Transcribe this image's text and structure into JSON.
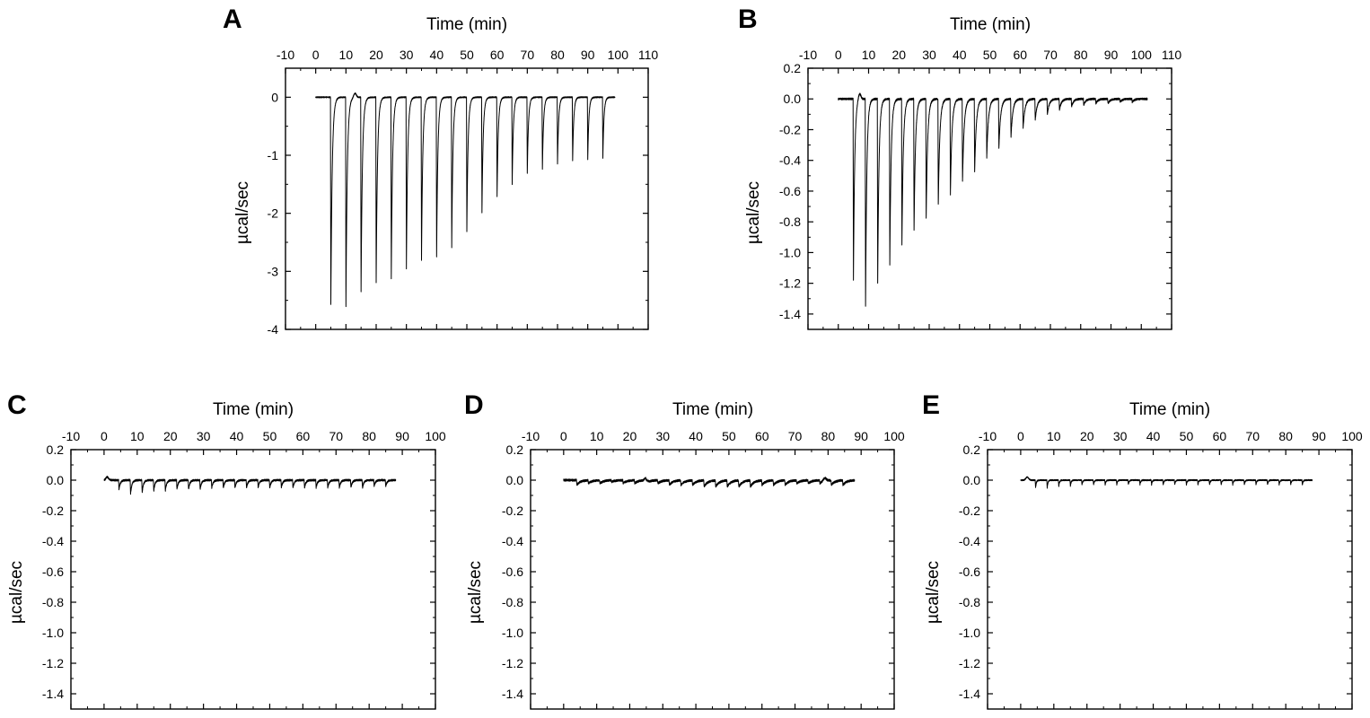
{
  "chart_data": [
    {
      "panel": "A",
      "type": "line",
      "xlabel": "Time (min)",
      "ylabel": "µcal/sec",
      "xlim": [
        -10,
        110
      ],
      "ylim": [
        -4,
        0.5
      ],
      "x_ticks": [
        -10,
        0,
        10,
        20,
        30,
        40,
        50,
        60,
        70,
        80,
        90,
        100,
        110
      ],
      "x_tick_labels": [
        "-10",
        "0",
        "10",
        "20",
        "30",
        "40",
        "50",
        "60",
        "70",
        "80",
        "90",
        "100",
        "110"
      ],
      "y_ticks": [
        0,
        -1,
        -2,
        -3,
        -4
      ],
      "y_tick_labels": [
        "0",
        "-1",
        "-2",
        "-3",
        "-4"
      ],
      "data_range": [
        0,
        99
      ],
      "baseline": 0,
      "injection_times": [
        5,
        10,
        15,
        20,
        25,
        30,
        35,
        40,
        45,
        50,
        55,
        60,
        65,
        70,
        75,
        80,
        85,
        90,
        95
      ],
      "peak_values": [
        -3.58,
        -3.6,
        -3.35,
        -3.2,
        -3.12,
        -2.95,
        -2.82,
        -2.75,
        -2.6,
        -2.32,
        -2.0,
        -1.72,
        -1.5,
        -1.32,
        -1.25,
        -1.15,
        -1.1,
        -1.08,
        -1.05
      ],
      "first_peak_decay": 1.0,
      "last_peak_decay": 0.8,
      "noise": 0.01,
      "bumps": [
        {
          "x": 13,
          "y": 0.07
        }
      ]
    },
    {
      "panel": "B",
      "type": "line",
      "xlabel": "Time (min)",
      "ylabel": "µcal/sec",
      "xlim": [
        -10,
        110
      ],
      "ylim": [
        -1.5,
        0.2
      ],
      "x_ticks": [
        -10,
        0,
        10,
        20,
        30,
        40,
        50,
        60,
        70,
        80,
        90,
        100,
        110
      ],
      "x_tick_labels": [
        "-10",
        "0",
        "10",
        "20",
        "30",
        "40",
        "50",
        "60",
        "70",
        "80",
        "90",
        "100",
        "110"
      ],
      "y_ticks": [
        0.2,
        0.0,
        -0.2,
        -0.4,
        -0.6,
        -0.8,
        -1.0,
        -1.2,
        -1.4
      ],
      "y_tick_labels": [
        "0.2",
        "0.0",
        "-0.2",
        "-0.4",
        "-0.6",
        "-0.8",
        "-1.0",
        "-1.2",
        "-1.4"
      ],
      "data_range": [
        0,
        102
      ],
      "baseline": 0,
      "injection_times": [
        5,
        9,
        13,
        17,
        21,
        25,
        29,
        33,
        37,
        41,
        45,
        49,
        53,
        57,
        61,
        65,
        69,
        73,
        77,
        81,
        85,
        89,
        93,
        97
      ],
      "peak_values": [
        -1.18,
        -1.35,
        -1.2,
        -1.08,
        -0.95,
        -0.86,
        -0.78,
        -0.69,
        -0.62,
        -0.54,
        -0.48,
        -0.38,
        -0.32,
        -0.25,
        -0.19,
        -0.14,
        -0.1,
        -0.07,
        -0.05,
        -0.04,
        -0.03,
        -0.03,
        -0.02,
        -0.02
      ],
      "first_peak_decay": 0.9,
      "last_peak_decay": 1.6,
      "noise": 0.006,
      "bumps": [
        {
          "x": 7,
          "y": 0.04
        }
      ]
    },
    {
      "panel": "C",
      "type": "line",
      "xlabel": "Time (min)",
      "ylabel": "µcal/sec",
      "xlim": [
        -10,
        100
      ],
      "ylim": [
        -1.5,
        0.2
      ],
      "x_ticks": [
        -10,
        0,
        10,
        20,
        30,
        40,
        50,
        60,
        70,
        80,
        90,
        100
      ],
      "x_tick_labels": [
        "-10",
        "0",
        "10",
        "20",
        "30",
        "40",
        "50",
        "60",
        "70",
        "80",
        "90",
        "100"
      ],
      "y_ticks": [
        0.2,
        0.0,
        -0.2,
        -0.4,
        -0.6,
        -0.8,
        -1.0,
        -1.2,
        -1.4
      ],
      "y_tick_labels": [
        "0.2",
        "0.0",
        "-0.2",
        "-0.4",
        "-0.6",
        "-0.8",
        "-1.0",
        "-1.2",
        "-1.4"
      ],
      "data_range": [
        0,
        88
      ],
      "baseline": 0,
      "injection_times": [
        4.5,
        8,
        11.5,
        15,
        18.5,
        22,
        25.5,
        29,
        32.5,
        36,
        39.5,
        43,
        46.5,
        50,
        53.5,
        57,
        60.5,
        64,
        67.5,
        71,
        74.5,
        78,
        81.5,
        85
      ],
      "peak_values": [
        -0.06,
        -0.09,
        -0.08,
        -0.07,
        -0.07,
        -0.06,
        -0.06,
        -0.06,
        -0.05,
        -0.05,
        -0.05,
        -0.05,
        -0.05,
        -0.05,
        -0.05,
        -0.05,
        -0.05,
        -0.05,
        -0.05,
        -0.05,
        -0.05,
        -0.05,
        -0.04,
        -0.04
      ],
      "first_peak_decay": 0.9,
      "last_peak_decay": 0.9,
      "noise": 0.006,
      "bumps": [
        {
          "x": 1,
          "y": 0.02
        }
      ]
    },
    {
      "panel": "D",
      "type": "line",
      "xlabel": "Time (min)",
      "ylabel": "µcal/sec",
      "xlim": [
        -10,
        100
      ],
      "ylim": [
        -1.5,
        0.2
      ],
      "x_ticks": [
        -10,
        0,
        10,
        20,
        30,
        40,
        50,
        60,
        70,
        80,
        90,
        100
      ],
      "x_tick_labels": [
        "-10",
        "0",
        "10",
        "20",
        "30",
        "40",
        "50",
        "60",
        "70",
        "80",
        "90",
        "100"
      ],
      "y_ticks": [
        0.2,
        0.0,
        -0.2,
        -0.4,
        -0.6,
        -0.8,
        -1.0,
        -1.2,
        -1.4
      ],
      "y_tick_labels": [
        "0.2",
        "0.0",
        "-0.2",
        "-0.4",
        "-0.6",
        "-0.8",
        "-1.0",
        "-1.2",
        "-1.4"
      ],
      "data_range": [
        0,
        88
      ],
      "baseline": 0,
      "injection_times": [
        4,
        7.5,
        11,
        14.5,
        18,
        21.5,
        25,
        28.5,
        32,
        35.5,
        39,
        42.5,
        46,
        49.5,
        53,
        56.5,
        60,
        63.5,
        67,
        70.5,
        74,
        77.5,
        81,
        84.5
      ],
      "peak_values": [
        -0.03,
        -0.02,
        -0.02,
        -0.01,
        -0.02,
        -0.02,
        -0.02,
        -0.02,
        -0.03,
        -0.03,
        -0.03,
        -0.04,
        -0.04,
        -0.04,
        -0.04,
        -0.04,
        -0.03,
        -0.03,
        -0.03,
        -0.02,
        -0.02,
        -0.02,
        -0.03,
        -0.03
      ],
      "first_peak_decay": 2.5,
      "last_peak_decay": 2.5,
      "noise": 0.007,
      "bumps": [
        {
          "x": 25,
          "y": 0.02
        },
        {
          "x": 79,
          "y": 0.02
        }
      ]
    },
    {
      "panel": "E",
      "type": "line",
      "xlabel": "Time (min)",
      "ylabel": "µcal/sec",
      "xlim": [
        -10,
        100
      ],
      "ylim": [
        -1.5,
        0.2
      ],
      "x_ticks": [
        -10,
        0,
        10,
        20,
        30,
        40,
        50,
        60,
        70,
        80,
        90,
        100
      ],
      "x_tick_labels": [
        "-10",
        "0",
        "10",
        "20",
        "30",
        "40",
        "50",
        "60",
        "70",
        "80",
        "90",
        "100"
      ],
      "y_ticks": [
        0.2,
        0.0,
        -0.2,
        -0.4,
        -0.6,
        -0.8,
        -1.0,
        -1.2,
        -1.4
      ],
      "y_tick_labels": [
        "0.2",
        "0.0",
        "-0.2",
        "-0.4",
        "-0.6",
        "-0.8",
        "-1.0",
        "-1.2",
        "-1.4"
      ],
      "data_range": [
        0,
        88
      ],
      "baseline": 0,
      "injection_times": [
        4.5,
        8,
        11.5,
        15,
        18.5,
        22,
        25.5,
        29,
        32.5,
        36,
        39.5,
        43,
        46.5,
        50,
        53.5,
        57,
        60.5,
        64,
        67.5,
        71,
        74.5,
        78,
        81.5,
        85
      ],
      "peak_values": [
        -0.05,
        -0.05,
        -0.04,
        -0.04,
        -0.03,
        -0.03,
        -0.03,
        -0.03,
        -0.03,
        -0.03,
        -0.03,
        -0.03,
        -0.03,
        -0.03,
        -0.03,
        -0.03,
        -0.03,
        -0.03,
        -0.03,
        -0.03,
        -0.03,
        -0.03,
        -0.03,
        -0.03
      ],
      "first_peak_decay": 0.5,
      "last_peak_decay": 0.5,
      "noise": 0.004,
      "bumps": [
        {
          "x": 2,
          "y": 0.02
        }
      ]
    }
  ]
}
